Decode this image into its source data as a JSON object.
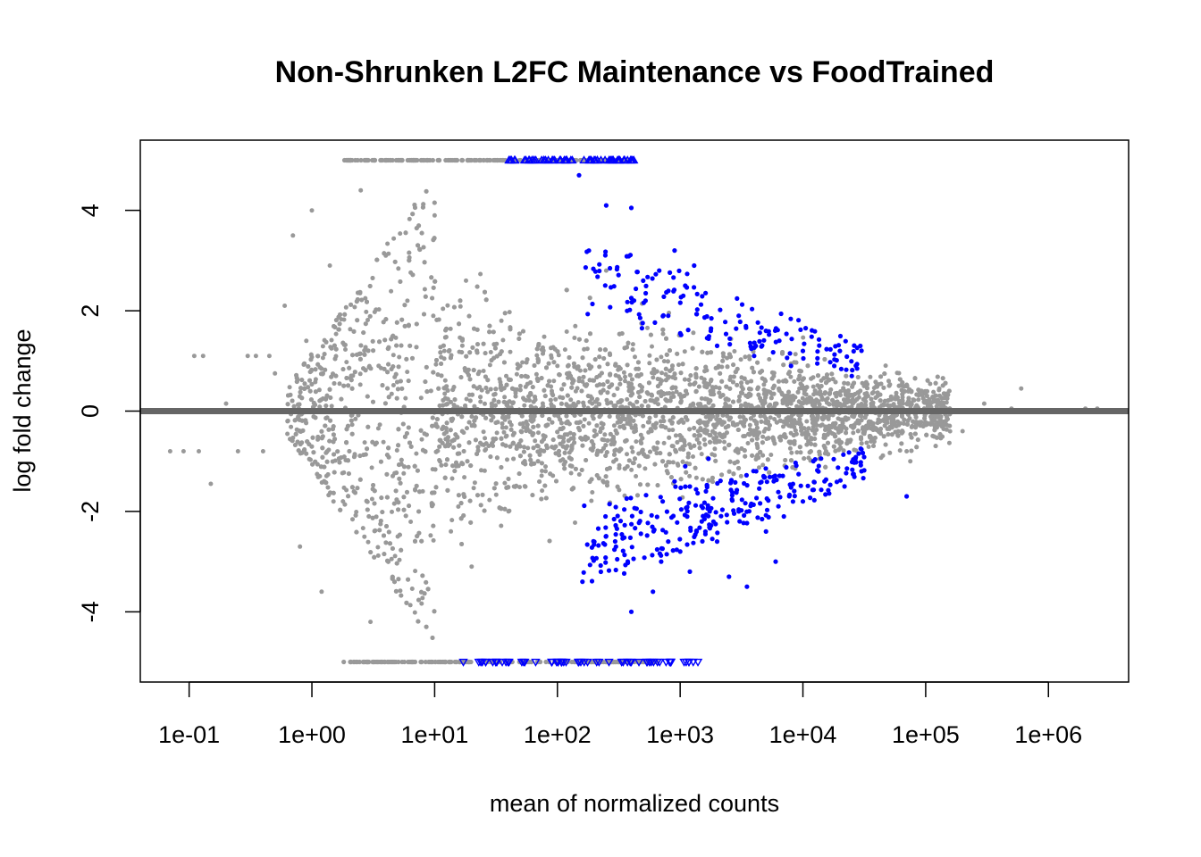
{
  "chart_data": {
    "type": "scatter",
    "title": "Non-Shrunken L2FC Maintenance vs FoodTrained",
    "xlabel": "mean of normalized counts",
    "ylabel": "log fold change",
    "x_scale": "log10",
    "xlim": [
      0.04,
      4500000
    ],
    "ylim": [
      -5.4,
      5.4
    ],
    "x_ticks": [
      0.1,
      1,
      10,
      100,
      1000,
      10000,
      100000,
      1000000
    ],
    "x_tick_labels": [
      "1e-01",
      "1e+00",
      "1e+01",
      "1e+02",
      "1e+03",
      "1e+04",
      "1e+05",
      "1e+06"
    ],
    "y_ticks": [
      -4,
      -2,
      0,
      2,
      4
    ],
    "y_tick_labels": [
      "-4",
      "-2",
      "0",
      "2",
      "4"
    ],
    "clip_limits": [
      -5,
      5
    ],
    "reference_line": {
      "y": 0,
      "color": "#666666"
    },
    "colors": {
      "not_significant": "#999999",
      "significant": "#0000ff"
    },
    "grid": false,
    "legend": "none",
    "series": [
      {
        "role": "not_significant",
        "color": "#999999",
        "points": [
          [
            0.11,
            1.1
          ],
          [
            0.13,
            1.1
          ],
          [
            0.07,
            -0.8
          ],
          [
            0.09,
            -0.8
          ],
          [
            0.12,
            -0.8
          ],
          [
            0.15,
            -1.45
          ],
          [
            0.2,
            0.15
          ],
          [
            0.25,
            -0.8
          ],
          [
            0.3,
            1.1
          ],
          [
            0.35,
            1.1
          ],
          [
            0.4,
            -0.8
          ],
          [
            0.45,
            1.1
          ],
          [
            0.5,
            0.75
          ],
          [
            0.6,
            2.1
          ],
          [
            0.7,
            3.5
          ],
          [
            0.8,
            -2.7
          ],
          [
            0.9,
            1.4
          ],
          [
            1.0,
            4.0
          ],
          [
            1.2,
            -3.6
          ],
          [
            1.4,
            2.9
          ],
          [
            1.5,
            -1.8
          ],
          [
            2.5,
            4.4
          ],
          [
            3,
            -4.2
          ],
          [
            4,
            3.1
          ],
          [
            5,
            -2.5
          ],
          [
            6,
            2.2
          ],
          [
            8,
            -1.6
          ],
          [
            10,
            3.9
          ],
          [
            12,
            1.2
          ],
          [
            15,
            -1.1
          ],
          [
            18,
            2.6
          ],
          [
            20,
            -3.1
          ],
          [
            25,
            0.8
          ],
          [
            30,
            -0.6
          ],
          [
            35,
            1.8
          ],
          [
            40,
            -2.0
          ],
          [
            50,
            0.5
          ],
          [
            60,
            -0.4
          ],
          [
            70,
            1.3
          ],
          [
            80,
            -1.2
          ],
          [
            100,
            0.9
          ],
          [
            120,
            -0.7
          ],
          [
            150,
            0.6
          ],
          [
            200,
            -0.5
          ],
          [
            250,
            2.8
          ],
          [
            300,
            -2.3
          ],
          [
            400,
            0.4
          ],
          [
            500,
            -0.3
          ],
          [
            700,
            0.3
          ],
          [
            1000,
            -0.2
          ],
          [
            1500,
            0.25
          ],
          [
            2000,
            -0.25
          ],
          [
            3000,
            0.2
          ],
          [
            5000,
            -0.15
          ],
          [
            8000,
            0.15
          ],
          [
            12000,
            -0.1
          ],
          [
            20000,
            0.12
          ],
          [
            30000,
            -0.1
          ],
          [
            50000,
            0.6
          ],
          [
            70000,
            -0.8
          ],
          [
            100000,
            0.2
          ],
          [
            150000,
            0.25
          ],
          [
            200000,
            -0.4
          ],
          [
            300000,
            0.15
          ],
          [
            500000,
            0.05
          ],
          [
            600000,
            0.45
          ],
          [
            2000000,
            0.05
          ],
          [
            2500000,
            0.05
          ],
          [
            75000,
            -1.0
          ],
          [
            90000,
            0.4
          ]
        ],
        "clipped_high_x": [
          1.8,
          400
        ],
        "clipped_low_x": [
          1.8,
          650
        ]
      },
      {
        "role": "significant",
        "color": "#0000ff",
        "points": [
          [
            150,
            4.7
          ],
          [
            250,
            4.1
          ],
          [
            400,
            4.05
          ],
          [
            500,
            2.6
          ],
          [
            800,
            1.9
          ],
          [
            900,
            3.2
          ],
          [
            1100,
            2.5
          ],
          [
            1300,
            2.9
          ],
          [
            2000,
            1.3
          ],
          [
            3000,
            1.9
          ],
          [
            4000,
            1.1
          ],
          [
            5000,
            1.6
          ],
          [
            8000,
            0.9
          ],
          [
            10000,
            1.2
          ],
          [
            20000,
            1.2
          ],
          [
            25000,
            0.7
          ],
          [
            18000,
            0.9
          ],
          [
            70000,
            -1.7
          ],
          [
            30000,
            -1.2
          ],
          [
            15000,
            -1.4
          ],
          [
            10000,
            -1.8
          ],
          [
            7000,
            -2.1
          ],
          [
            5000,
            -2.4
          ],
          [
            3500,
            -3.5
          ],
          [
            3000,
            -2.0
          ],
          [
            2000,
            -2.6
          ],
          [
            1500,
            -2.2
          ],
          [
            1200,
            -3.2
          ],
          [
            1000,
            -2.8
          ],
          [
            800,
            -2.6
          ],
          [
            700,
            -3.0
          ],
          [
            600,
            -3.6
          ],
          [
            400,
            -4.0
          ],
          [
            300,
            -2.7
          ],
          [
            6000,
            -3.0
          ],
          [
            2500,
            -3.3
          ],
          [
            900,
            -1.4
          ],
          [
            1100,
            -1.1
          ],
          [
            1700,
            -0.95
          ]
        ],
        "clipped_high_x": [
          40,
          420
        ],
        "clipped_low_x": [
          15,
          1400
        ]
      }
    ]
  }
}
